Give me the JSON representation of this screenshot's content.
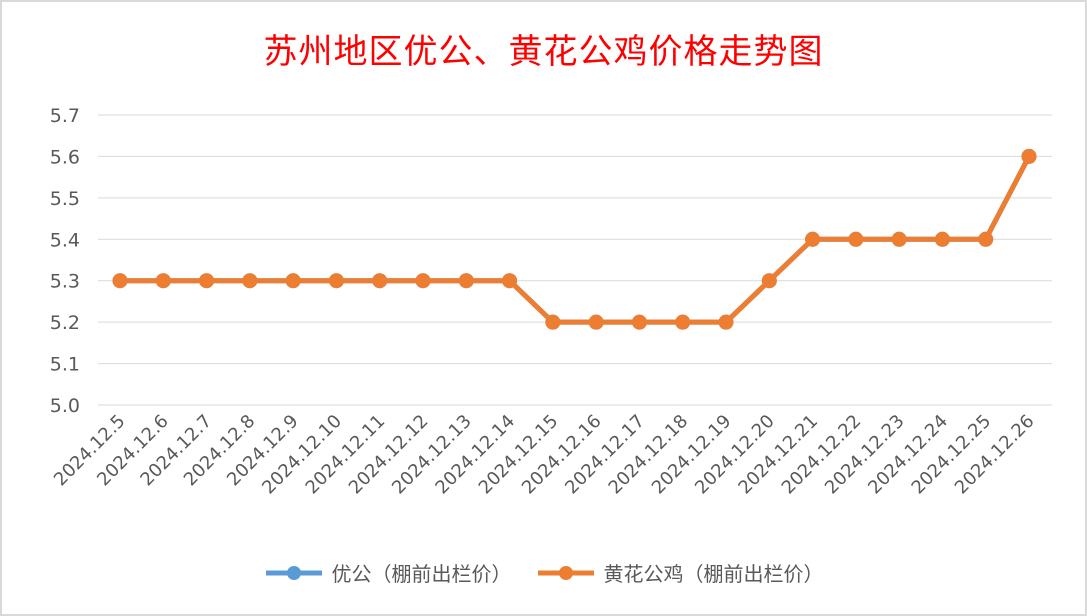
{
  "chart_data": {
    "type": "line",
    "title": "苏州地区优公、黄花公鸡价格走势图",
    "xlabel": "",
    "ylabel": "",
    "ylim": [
      5.0,
      5.7
    ],
    "yticks": [
      "5.0",
      "5.1",
      "5.2",
      "5.3",
      "5.4",
      "5.5",
      "5.6",
      "5.7"
    ],
    "grid": true,
    "legend_position": "bottom",
    "categories": [
      "2024.12.5",
      "2024.12.6",
      "2024.12.7",
      "2024.12.8",
      "2024.12.9",
      "2024.12.10",
      "2024.12.11",
      "2024.12.12",
      "2024.12.13",
      "2024.12.14",
      "2024.12.15",
      "2024.12.16",
      "2024.12.17",
      "2024.12.18",
      "2024.12.19",
      "2024.12.20",
      "2024.12.21",
      "2024.12.22",
      "2024.12.23",
      "2024.12.24",
      "2024.12.25",
      "2024.12.26"
    ],
    "series": [
      {
        "name": "优公（棚前出栏价）",
        "color": "#5b9bd5",
        "values": [
          5.3,
          5.3,
          5.3,
          5.3,
          5.3,
          5.3,
          5.3,
          5.3,
          5.3,
          5.3,
          5.2,
          5.2,
          5.2,
          5.2,
          5.2,
          5.3,
          5.4,
          5.4,
          5.4,
          5.4,
          5.4,
          5.6
        ]
      },
      {
        "name": "黄花公鸡（棚前出栏价）",
        "color": "#ed7d31",
        "values": [
          5.3,
          5.3,
          5.3,
          5.3,
          5.3,
          5.3,
          5.3,
          5.3,
          5.3,
          5.3,
          5.2,
          5.2,
          5.2,
          5.2,
          5.2,
          5.3,
          5.4,
          5.4,
          5.4,
          5.4,
          5.4,
          5.6
        ]
      }
    ]
  }
}
